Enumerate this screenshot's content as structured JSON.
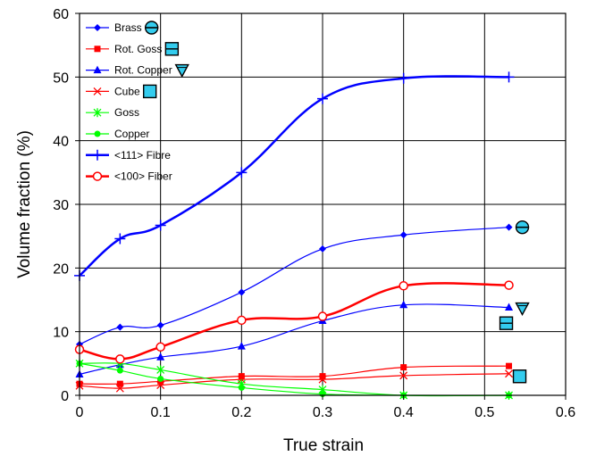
{
  "chart_data": {
    "type": "line",
    "title": "",
    "xlabel": "True strain",
    "ylabel": "Volume fraction (%)",
    "xlim": [
      0,
      0.6
    ],
    "ylim": [
      0,
      60
    ],
    "x_ticks": [
      "0",
      "0.1",
      "0.2",
      "0.3",
      "0.4",
      "0.5",
      "0.6"
    ],
    "y_ticks": [
      "0",
      "10",
      "20",
      "30",
      "40",
      "50",
      "60"
    ],
    "grid": "major gridlines on both axes",
    "legend_position": "top-left",
    "series": [
      {
        "name": "Brass",
        "color": "#0000ff",
        "marker": "diamond",
        "line_width": 1.2,
        "x": [
          0,
          0.05,
          0.1,
          0.2,
          0.3,
          0.4,
          0.53
        ],
        "y": [
          8,
          10.7,
          11,
          16.2,
          23,
          25.2,
          26.4
        ],
        "end_symbol": "circle-with-bar"
      },
      {
        "name": "Rot. Goss",
        "color": "#ff0000",
        "marker": "square",
        "line_width": 1.2,
        "x": [
          0,
          0.05,
          0.1,
          0.2,
          0.3,
          0.4,
          0.53
        ],
        "y": [
          1.8,
          1.8,
          2.2,
          3,
          3,
          4.4,
          4.6
        ],
        "end_symbol": "square-with-bar"
      },
      {
        "name": "Rot. Copper",
        "color": "#0000ff",
        "marker": "triangle",
        "line_width": 1.2,
        "x": [
          0,
          0.05,
          0.1,
          0.2,
          0.3,
          0.4,
          0.53
        ],
        "y": [
          3.3,
          4.8,
          6,
          7.7,
          11.7,
          14.2,
          13.8
        ],
        "end_symbol": "triangle-down"
      },
      {
        "name": "Cube",
        "color": "#ff0000",
        "marker": "x",
        "line_width": 1.2,
        "x": [
          0,
          0.05,
          0.1,
          0.2,
          0.3,
          0.4,
          0.53
        ],
        "y": [
          1.5,
          1.1,
          1.6,
          2.5,
          2.5,
          3.1,
          3.4
        ],
        "end_symbol": "square"
      },
      {
        "name": "Goss",
        "color": "#00ff00",
        "marker": "asterisk",
        "line_width": 1.2,
        "x": [
          0,
          0.05,
          0.1,
          0.2,
          0.3,
          0.4,
          0.53
        ],
        "y": [
          5,
          5,
          4,
          1.8,
          0.9,
          0,
          0
        ]
      },
      {
        "name": "Copper",
        "color": "#00ff00",
        "marker": "circle",
        "line_width": 1.2,
        "x": [
          0,
          0.05,
          0.1,
          0.2,
          0.3,
          0.4,
          0.53
        ],
        "y": [
          5,
          3.9,
          2.6,
          1.2,
          0.2,
          0,
          0
        ]
      },
      {
        "name": "<111> Fibre",
        "color": "#0000ff",
        "marker": "plus",
        "line_width": 2.5,
        "x": [
          0,
          0.05,
          0.1,
          0.2,
          0.3,
          0.4,
          0.53
        ],
        "y": [
          18.8,
          24.6,
          26.7,
          35,
          46.6,
          49.8,
          50
        ]
      },
      {
        "name": "<100> Fiber",
        "color": "#ff0000",
        "marker": "open-circle",
        "line_width": 2.5,
        "x": [
          0,
          0.05,
          0.1,
          0.2,
          0.3,
          0.4,
          0.53
        ],
        "y": [
          7.2,
          5.7,
          7.6,
          11.8,
          12.4,
          17.2,
          17.3
        ]
      }
    ],
    "legend_symbols": [
      "circle-with-bar",
      "square-with-bar",
      "triangle-down",
      "square",
      null,
      null,
      null,
      null
    ]
  }
}
